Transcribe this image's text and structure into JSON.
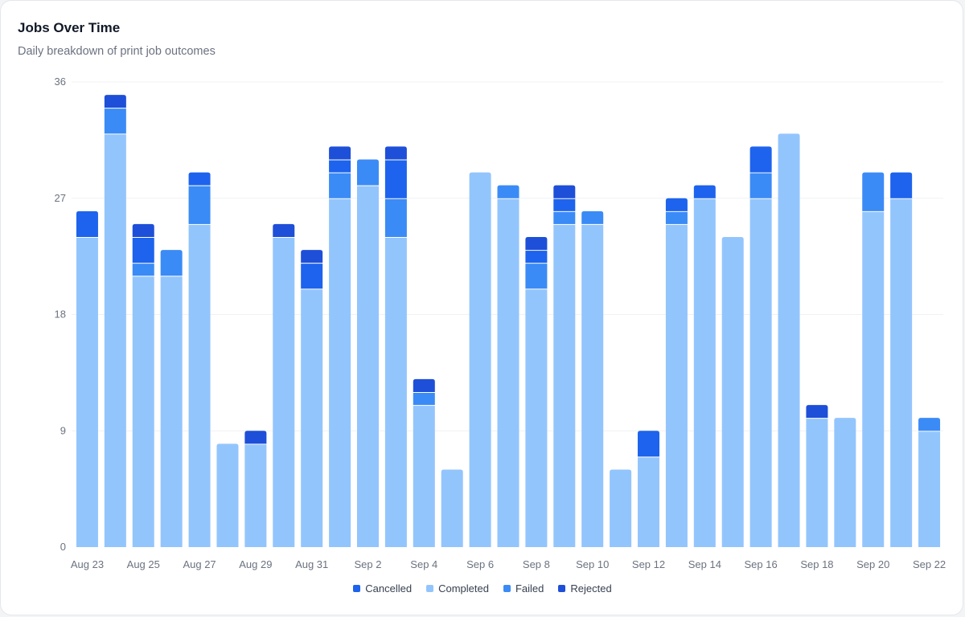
{
  "header": {
    "title": "Jobs Over Time",
    "subtitle": "Daily breakdown of print job outcomes"
  },
  "colors": {
    "Completed": "#93c5fd",
    "Failed": "#3b8bf6",
    "Cancelled": "#1d63ed",
    "Rejected": "#1e4fd8",
    "grid": "#f0f1f3",
    "tick_text": "#6b7280"
  },
  "legend": {
    "items": [
      {
        "name": "Cancelled",
        "color": "#1d63ed"
      },
      {
        "name": "Completed",
        "color": "#93c5fd"
      },
      {
        "name": "Failed",
        "color": "#3b8bf6"
      },
      {
        "name": "Rejected",
        "color": "#1e4fd8"
      }
    ]
  },
  "chart_data": {
    "type": "bar",
    "stacked": true,
    "title": "Jobs Over Time",
    "subtitle": "Daily breakdown of print job outcomes",
    "xlabel": "",
    "ylabel": "",
    "ylim": [
      0,
      36
    ],
    "yticks": [
      0,
      9,
      18,
      27,
      36
    ],
    "grid": true,
    "legend_position": "bottom",
    "categories": [
      "Aug 23",
      "Aug 24",
      "Aug 25",
      "Aug 26",
      "Aug 27",
      "Aug 28",
      "Aug 29",
      "Aug 30",
      "Aug 31",
      "Sep 1",
      "Sep 2",
      "Sep 3",
      "Sep 4",
      "Sep 5",
      "Sep 6",
      "Sep 7",
      "Sep 8",
      "Sep 9",
      "Sep 10",
      "Sep 11",
      "Sep 12",
      "Sep 13",
      "Sep 14",
      "Sep 15",
      "Sep 16",
      "Sep 17",
      "Sep 18",
      "Sep 19",
      "Sep 20",
      "Sep 21",
      "Sep 22"
    ],
    "xtick_labels": [
      "Aug 23",
      "Aug 25",
      "Aug 27",
      "Aug 29",
      "Aug 31",
      "Sep 2",
      "Sep 4",
      "Sep 6",
      "Sep 8",
      "Sep 10",
      "Sep 12",
      "Sep 14",
      "Sep 16",
      "Sep 18",
      "Sep 20",
      "Sep 22"
    ],
    "series": [
      {
        "name": "Completed",
        "values": [
          24,
          32,
          21,
          21,
          25,
          8,
          8,
          24,
          20,
          27,
          28,
          24,
          11,
          6,
          29,
          27,
          20,
          25,
          25,
          6,
          7,
          25,
          27,
          24,
          27,
          32,
          10,
          10,
          26,
          27,
          9
        ]
      },
      {
        "name": "Failed",
        "values": [
          0,
          2,
          1,
          2,
          3,
          0,
          0,
          0,
          0,
          2,
          2,
          3,
          1,
          0,
          0,
          1,
          2,
          1,
          1,
          0,
          0,
          1,
          0,
          0,
          2,
          0,
          0,
          0,
          3,
          0,
          1
        ]
      },
      {
        "name": "Cancelled",
        "values": [
          2,
          0,
          2,
          0,
          1,
          0,
          0,
          0,
          2,
          1,
          0,
          3,
          0,
          0,
          0,
          0,
          1,
          1,
          0,
          0,
          2,
          1,
          1,
          0,
          2,
          0,
          0,
          0,
          0,
          2,
          0
        ]
      },
      {
        "name": "Rejected",
        "values": [
          0,
          1,
          1,
          0,
          0,
          0,
          1,
          1,
          1,
          1,
          0,
          1,
          1,
          0,
          0,
          0,
          1,
          1,
          0,
          0,
          0,
          0,
          0,
          0,
          0,
          0,
          1,
          0,
          0,
          0,
          0
        ]
      }
    ]
  }
}
